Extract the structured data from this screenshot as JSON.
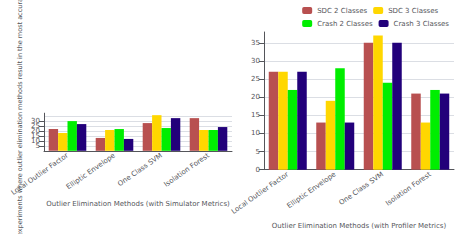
{
  "chart_data": [
    {
      "type": "bar",
      "xlabel": "Outlier Elimination Methods (with Simulator Metrics)",
      "ylabel": "Number of experiments where outlier elimination methods result in the most accurate",
      "categories": [
        "Local Outlier Factor",
        "Elliptic Envelope",
        "One Class SVM",
        "Isolation Forest"
      ],
      "series": [
        {
          "name": "SDC 2 Classes",
          "color": "#b85050",
          "values": [
            22,
            13,
            28,
            33
          ]
        },
        {
          "name": "SDC 3 Classes",
          "color": "#ffd700",
          "values": [
            18,
            21,
            36,
            21
          ]
        },
        {
          "name": "Crash 2 Classes",
          "color": "#00ee00",
          "values": [
            30,
            22,
            23,
            21
          ]
        },
        {
          "name": "Crash 3 Classes",
          "color": "#22007a",
          "values": [
            27,
            12,
            33,
            24
          ]
        }
      ],
      "ylim": [
        0,
        38
      ],
      "yticks": [
        0,
        5,
        10,
        15,
        20,
        25,
        30,
        35
      ],
      "grid": true
    },
    {
      "type": "bar",
      "xlabel": "Outlier Elimination Methods (with Profiler Metrics)",
      "categories": [
        "Local Outlier Factor",
        "Elliptic Envelope",
        "One Class SVM",
        "Isolation Forest"
      ],
      "series": [
        {
          "name": "SDC 2 Classes",
          "color": "#b85050",
          "values": [
            27,
            13,
            35,
            21
          ]
        },
        {
          "name": "SDC 3 Classes",
          "color": "#ffd700",
          "values": [
            27,
            19,
            37,
            13
          ]
        },
        {
          "name": "Crash 2 Classes",
          "color": "#00ee00",
          "values": [
            22,
            28,
            24,
            22
          ]
        },
        {
          "name": "Crash 3 Classes",
          "color": "#22007a",
          "values": [
            27,
            13,
            35,
            21
          ]
        }
      ],
      "ylim": [
        0,
        38
      ],
      "yticks": [
        0,
        5,
        10,
        15,
        20,
        25,
        30,
        35
      ],
      "grid": true,
      "legend": "upper right"
    }
  ]
}
